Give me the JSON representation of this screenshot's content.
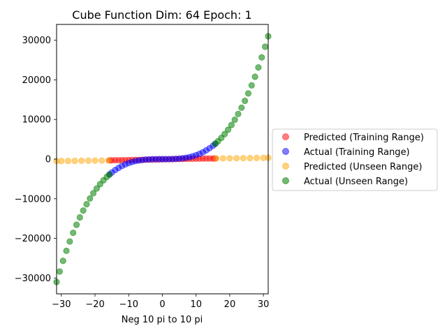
{
  "chart_data": {
    "type": "scatter",
    "title": "Cube Function Dim: 64 Epoch: 1",
    "xlabel": "Neg 10 pi to 10 pi",
    "ylabel": "",
    "xlim": [
      -31.416,
      31.416
    ],
    "ylim": [
      -34000,
      34000
    ],
    "xticks": [
      -30,
      -20,
      -10,
      0,
      10,
      20,
      30
    ],
    "xtick_labels": [
      "−30",
      "−20",
      "−10",
      "0",
      "10",
      "20",
      "30"
    ],
    "yticks": [
      -30000,
      -20000,
      -10000,
      0,
      10000,
      20000,
      30000
    ],
    "ytick_labels": [
      "−30000",
      "−20000",
      "−10000",
      "0",
      "10000",
      "20000",
      "30000"
    ],
    "legend_position": "center-right-outside",
    "series": [
      {
        "name": "Predicted (Training Range)",
        "color": "#ff0000",
        "alpha": 0.5,
        "x": [
          -15.708,
          -15.0,
          -14.0,
          -13.0,
          -12.0,
          -11.0,
          -10.0,
          -9.0,
          -8.0,
          -7.0,
          -6.0,
          -5.0,
          -4.0,
          -3.0,
          -2.0,
          -1.0,
          0.0,
          1.0,
          2.0,
          3.0,
          4.0,
          5.0,
          6.0,
          7.0,
          8.0,
          9.0,
          10.0,
          11.0,
          12.0,
          13.0,
          14.0,
          15.0,
          15.708
        ],
        "y": [
          -320,
          -300,
          -290,
          -275,
          -260,
          -250,
          -235,
          -220,
          -205,
          -190,
          -175,
          -160,
          -140,
          -120,
          -100,
          -80,
          -60,
          -40,
          -20,
          0,
          20,
          35,
          50,
          65,
          80,
          95,
          110,
          120,
          130,
          140,
          150,
          155,
          160
        ]
      },
      {
        "name": "Actual (Training Range)",
        "color": "#0000ff",
        "alpha": 0.5,
        "x": [
          -15.708,
          -15.0,
          -14.0,
          -13.0,
          -12.0,
          -11.0,
          -10.0,
          -9.0,
          -8.0,
          -7.0,
          -6.0,
          -5.0,
          -4.0,
          -3.0,
          -2.0,
          -1.0,
          0.0,
          1.0,
          2.0,
          3.0,
          4.0,
          5.0,
          6.0,
          7.0,
          8.0,
          9.0,
          10.0,
          11.0,
          12.0,
          13.0,
          14.0,
          15.0,
          15.708
        ],
        "y": [
          -3876,
          -3375,
          -2744,
          -2197,
          -1728,
          -1331,
          -1000,
          -729,
          -512,
          -343,
          -216,
          -125,
          -64,
          -27,
          -8,
          -1,
          0,
          1,
          8,
          27,
          64,
          125,
          216,
          343,
          512,
          729,
          1000,
          1331,
          1728,
          2197,
          2744,
          3375,
          3876
        ]
      },
      {
        "name": "Predicted (Unseen Range)",
        "color": "#ffa500",
        "alpha": 0.5,
        "x": [
          -31.416,
          -30.0,
          -28.0,
          -26.0,
          -24.0,
          -22.0,
          -20.0,
          -18.0,
          -16.0,
          16.0,
          18.0,
          20.0,
          22.0,
          24.0,
          26.0,
          28.0,
          30.0,
          31.416
        ],
        "y": [
          -500,
          -480,
          -460,
          -440,
          -420,
          -400,
          -380,
          -360,
          -340,
          170,
          190,
          210,
          230,
          250,
          270,
          290,
          310,
          330
        ]
      },
      {
        "name": "Actual (Unseen Range)",
        "color": "#008000",
        "alpha": 0.55,
        "x": [
          -31.416,
          -30.5,
          -29.5,
          -28.5,
          -27.5,
          -26.5,
          -25.5,
          -24.5,
          -23.5,
          -22.5,
          -21.5,
          -20.5,
          -19.5,
          -18.5,
          -17.5,
          -16.5,
          -15.708,
          15.708,
          16.5,
          17.5,
          18.5,
          19.5,
          20.5,
          21.5,
          22.5,
          23.5,
          24.5,
          25.5,
          26.5,
          27.5,
          28.5,
          29.5,
          30.5,
          31.416
        ],
        "y": [
          -31006,
          -28373,
          -25672,
          -23149,
          -20797,
          -18610,
          -16581,
          -14706,
          -12978,
          -11391,
          -9938,
          -8615,
          -7415,
          -6332,
          -5359,
          -4492,
          -3876,
          3876,
          4492,
          5359,
          6332,
          7415,
          8615,
          9938,
          11391,
          12978,
          14706,
          16581,
          18610,
          20797,
          23149,
          25672,
          28373,
          31006
        ]
      }
    ]
  }
}
